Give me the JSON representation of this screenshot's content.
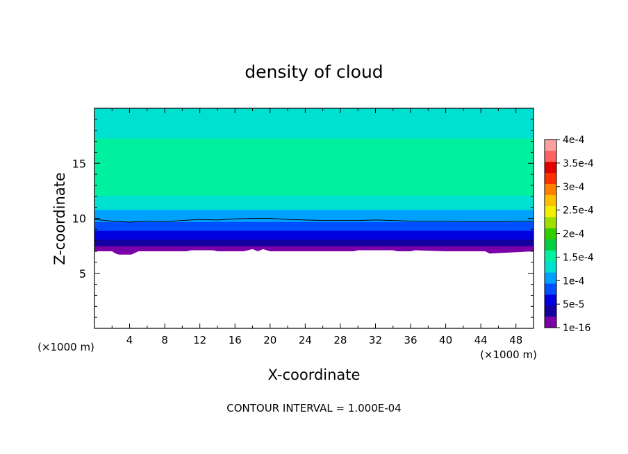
{
  "chart_data": {
    "type": "heatmap",
    "title": "density of cloud",
    "xlabel": "X-coordinate",
    "ylabel": "Z-coordinate",
    "x_unit_label": "(×1000 m)",
    "z_unit_label": "(×1000 m)",
    "footer": "CONTOUR INTERVAL = 1.000E-04",
    "xlim": [
      0,
      50
    ],
    "ylim": [
      0,
      20
    ],
    "x_ticks": [
      4,
      8,
      12,
      16,
      20,
      24,
      28,
      32,
      36,
      40,
      44,
      48
    ],
    "y_ticks": [
      5,
      10,
      15
    ],
    "colorbar": {
      "labels": [
        "1e-16",
        "5e-5",
        "1e-4",
        "1.5e-4",
        "2e-4",
        "2.5e-4",
        "3e-4",
        "3.5e-4",
        "4e-4"
      ],
      "levels": [
        1e-16,
        5e-05,
        0.0001,
        0.00015,
        0.0002,
        0.00025,
        0.0003,
        0.00035,
        0.0004
      ],
      "colors": [
        "#7a00a8",
        "#1400a0",
        "#0000e0",
        "#0050ff",
        "#00a0ff",
        "#00e0d0",
        "#00f0a0",
        "#00d040",
        "#30d000",
        "#a0e000",
        "#f0f000",
        "#ffc000",
        "#ff8000",
        "#ff3000",
        "#e00000",
        "#ff6060",
        "#ffa0a0"
      ]
    },
    "profile": {
      "z": [
        7.0,
        7.5,
        8.0,
        8.5,
        9.0,
        9.5,
        10.0,
        10.5,
        11.0,
        11.5,
        12.0,
        12.5,
        13.0,
        14.0,
        15.0,
        16.0,
        16.5,
        17.0,
        17.5,
        18.0,
        18.5,
        19.0,
        20.0
      ],
      "density": [
        5e-06,
        2.5e-05,
        4.5e-05,
        6e-05,
        7.5e-05,
        9e-05,
        0.0001,
        0.000112,
        0.000122,
        0.000132,
        0.00014,
        0.000146,
        0.00015,
        0.000153,
        0.000155,
        0.000153,
        0.00015,
        0.000145,
        0.000138,
        0.000132,
        0.000128,
        0.000125,
        0.000123
      ]
    },
    "contour_level": 0.0001,
    "contour_line": {
      "x": [
        0,
        2,
        4,
        6,
        8,
        10,
        12,
        14,
        16,
        18,
        20,
        22,
        24,
        26,
        28,
        30,
        32,
        34,
        36,
        38,
        40,
        42,
        44,
        46,
        48,
        50
      ],
      "z": [
        9.9,
        9.75,
        9.65,
        9.75,
        9.7,
        9.8,
        9.9,
        9.85,
        9.95,
        10.0,
        10.0,
        9.9,
        9.85,
        9.8,
        9.8,
        9.8,
        9.85,
        9.8,
        9.75,
        9.75,
        9.75,
        9.7,
        9.7,
        9.7,
        9.75,
        9.75
      ]
    },
    "cloud_base": {
      "x": [
        0,
        2,
        2.4,
        2.8,
        3.5,
        4.2,
        5,
        8,
        10.5,
        11,
        13.5,
        14,
        17,
        18,
        18.6,
        19.2,
        20,
        24,
        29.5,
        30,
        34,
        34.5,
        36,
        36.5,
        40,
        44.5,
        45,
        50
      ],
      "z": [
        7.0,
        7.0,
        6.8,
        6.7,
        6.7,
        6.7,
        7.0,
        7.0,
        7.0,
        7.1,
        7.1,
        7.0,
        7.0,
        7.2,
        7.0,
        7.2,
        7.0,
        7.0,
        7.0,
        7.1,
        7.1,
        7.0,
        7.0,
        7.1,
        7.0,
        7.0,
        6.8,
        7.0
      ]
    }
  }
}
